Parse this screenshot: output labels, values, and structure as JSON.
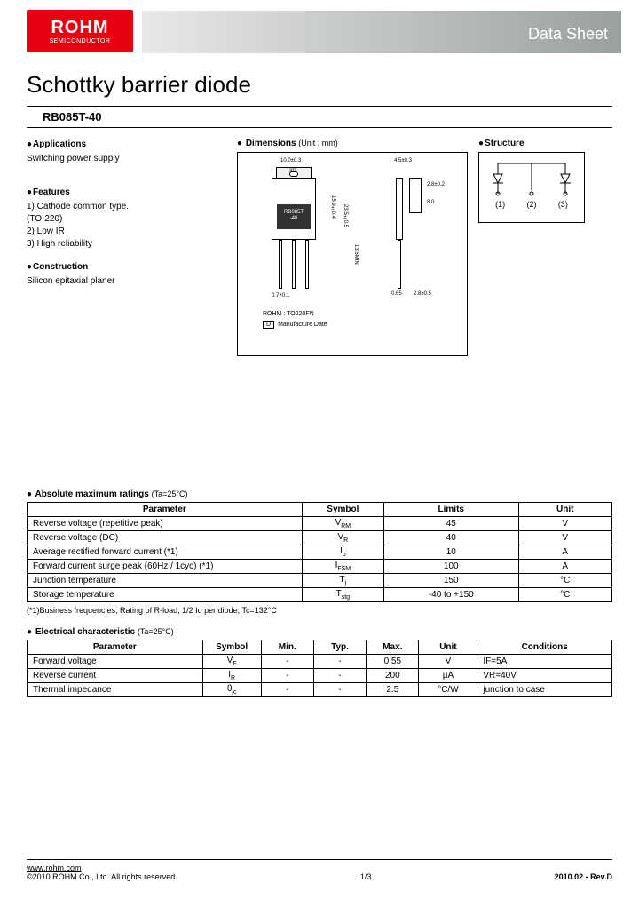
{
  "header": {
    "logo_main": "ROHM",
    "logo_sub": "SEMICONDUCTOR",
    "banner_label": "Data Sheet"
  },
  "title": "Schottky barrier diode",
  "part_number": "RB085T-40",
  "sections": {
    "applications": {
      "heading": "Applications",
      "text": "Switching power supply"
    },
    "features": {
      "heading": "Features",
      "items": [
        "1) Cathode common type.",
        "(TO-220)",
        "2) Low IR",
        "3) High reliability"
      ]
    },
    "construction": {
      "heading": "Construction",
      "text": "Silicon epitaxial planer"
    },
    "dimensions": {
      "heading": "Dimensions",
      "unit_note": "(Unit : mm)"
    },
    "structure": {
      "heading": "Structure",
      "pins": [
        "(1)",
        "(2)",
        "(3)"
      ]
    }
  },
  "package": {
    "name": "ROHM : TO220FN",
    "note": "Manufacture Date",
    "marking_line1": "RB085T",
    "marking_line2": "-40",
    "dims": {
      "width": "10.0±0.3",
      "tab_hole": "3D",
      "body_h": "15.9±0.4",
      "total_h": "23.5±0.5",
      "lead_h": "13.5MIN",
      "thick": "4.5±0.3",
      "heat_w": "2.8±0.2",
      "heat_h": "8.0",
      "pitch": "2.54",
      "lead_w": "0.7+0.1",
      "lead_t": "0.65",
      "foot": "2.8±0.5"
    }
  },
  "table1": {
    "title": "Absolute maximum ratings",
    "cond": "(Ta=25°C)",
    "headers": [
      "Parameter",
      "Symbol",
      "Limits",
      "Unit"
    ],
    "rows": [
      [
        "Reverse voltage (repetitive peak)",
        "VRM",
        "45",
        "V"
      ],
      [
        "Reverse voltage (DC)",
        "VR",
        "40",
        "V"
      ],
      [
        "Average rectified forward current (*1)",
        "Io",
        "10",
        "A"
      ],
      [
        "Forward current surge peak (60Hz / 1cyc) (*1)",
        "IFSM",
        "100",
        "A"
      ],
      [
        "Junction temperature",
        "Tj",
        "150",
        "°C"
      ],
      [
        "Storage temperature",
        "Tstg",
        "-40 to +150",
        "°C"
      ]
    ],
    "note": "(*1)Business frequencies, Rating of R-load, 1/2 Io per diode, Tc=132°C"
  },
  "table2": {
    "title": "Electrical characteristic",
    "cond": "(Ta=25°C)",
    "headers": [
      "Parameter",
      "Symbol",
      "Min.",
      "Typ.",
      "Max.",
      "Unit",
      "Conditions"
    ],
    "rows": [
      [
        "Forward voltage",
        "VF",
        "-",
        "-",
        "0.55",
        "V",
        "IF=5A"
      ],
      [
        "Reverse current",
        "IR",
        "-",
        "-",
        "200",
        "µA",
        "VR=40V"
      ],
      [
        "Thermal impedance",
        "θjc",
        "-",
        "-",
        "2.5",
        "°C/W",
        "junction to case"
      ]
    ]
  },
  "footer": {
    "url": "www.rohm.com",
    "copyright": "©2010 ROHM Co., Ltd. All rights reserved.",
    "page": "1/3",
    "revision": "2010.02 - Rev.D"
  },
  "style": {
    "brand_color": "#e60012",
    "text_color": "#000000",
    "bg_color": "#ffffff"
  }
}
